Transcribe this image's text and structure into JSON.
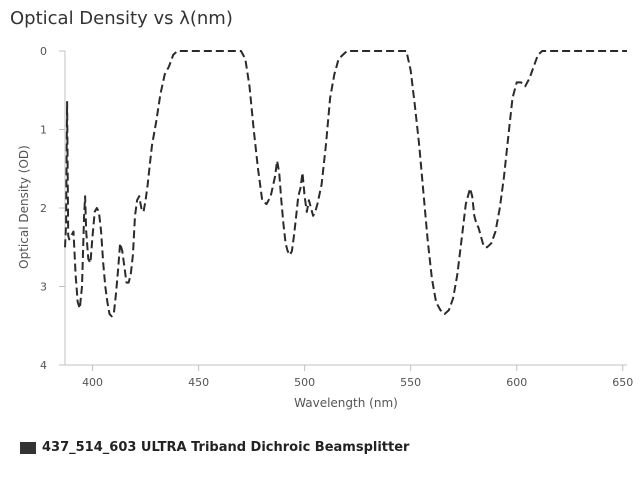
{
  "chart_data": {
    "type": "line",
    "title": "Optical Density vs λ(nm)",
    "xlabel": "Wavelength (nm)",
    "ylabel": "Optical Density (OD)",
    "xlim": [
      387,
      652
    ],
    "ylim": [
      0,
      4
    ],
    "y_inverted": true,
    "xticks": [
      400,
      450,
      500,
      550,
      600,
      650
    ],
    "yticks": [
      0,
      1,
      2,
      3,
      4
    ],
    "grid": false,
    "legend_position": "bottom-left",
    "series": [
      {
        "name": "437_514_603 ULTRA Triband Dichroic Beamsplitter",
        "color": "#2b2b2b",
        "line_style": "dashed",
        "x": [
          387,
          387.5,
          388,
          388.5,
          389,
          390,
          391,
          392,
          393,
          394,
          395,
          396,
          396.5,
          397,
          398,
          399,
          400,
          401,
          402,
          403,
          404,
          405,
          406,
          407,
          408,
          409,
          410,
          411,
          412,
          413,
          414,
          415,
          416,
          417,
          418,
          419,
          420,
          421,
          422,
          423,
          424,
          425,
          426,
          427,
          428,
          430,
          432,
          434,
          436,
          438,
          440,
          442,
          444,
          446,
          448,
          450,
          455,
          460,
          465,
          470,
          472,
          474,
          476,
          478,
          480,
          482,
          484,
          486,
          487,
          488,
          489,
          490,
          491,
          492,
          493,
          494,
          495,
          496,
          497,
          498,
          499,
          500,
          501,
          502,
          503,
          504,
          505,
          506,
          508,
          510,
          512,
          514,
          515,
          516,
          518,
          520,
          525,
          530,
          535,
          540,
          544,
          546,
          548,
          550,
          552,
          554,
          556,
          558,
          560,
          562,
          564,
          566,
          568,
          570,
          572,
          574,
          576,
          578,
          579,
          580,
          581,
          582,
          583,
          584,
          585,
          586,
          588,
          590,
          592,
          594,
          596,
          598,
          600,
          602,
          604,
          606,
          608,
          610,
          612,
          615,
          620,
          630,
          640,
          652
        ],
        "y": [
          2.5,
          2.2,
          0.65,
          2.35,
          2.4,
          2.35,
          2.3,
          2.85,
          3.2,
          3.28,
          3.0,
          2.1,
          1.85,
          2.3,
          2.65,
          2.7,
          2.35,
          2.05,
          2.0,
          2.05,
          2.3,
          2.7,
          3.0,
          3.2,
          3.35,
          3.38,
          3.35,
          3.1,
          2.8,
          2.45,
          2.55,
          2.75,
          2.95,
          2.95,
          2.85,
          2.6,
          2.1,
          1.9,
          1.85,
          2.0,
          2.05,
          1.9,
          1.7,
          1.45,
          1.2,
          0.9,
          0.55,
          0.3,
          0.2,
          0.05,
          0.0,
          0.0,
          0.0,
          0.0,
          0.0,
          0.0,
          0.0,
          0.0,
          0.0,
          0.0,
          0.1,
          0.45,
          1.0,
          1.5,
          1.9,
          1.95,
          1.85,
          1.6,
          1.4,
          1.55,
          1.9,
          2.2,
          2.45,
          2.55,
          2.6,
          2.55,
          2.35,
          2.1,
          1.85,
          1.75,
          1.55,
          1.85,
          2.05,
          1.9,
          2.0,
          2.1,
          2.05,
          1.95,
          1.7,
          1.2,
          0.6,
          0.3,
          0.2,
          0.1,
          0.05,
          0.0,
          0.0,
          0.0,
          0.0,
          0.0,
          0.0,
          0.0,
          0.0,
          0.25,
          0.7,
          1.2,
          1.8,
          2.4,
          2.9,
          3.2,
          3.3,
          3.35,
          3.3,
          3.15,
          2.85,
          2.4,
          1.95,
          1.75,
          1.85,
          2.1,
          2.2,
          2.25,
          2.35,
          2.45,
          2.5,
          2.5,
          2.45,
          2.3,
          2.0,
          1.6,
          1.1,
          0.6,
          0.4,
          0.4,
          0.45,
          0.35,
          0.2,
          0.05,
          0.0,
          0.0,
          0.0,
          0.0,
          0.0,
          0.0
        ]
      }
    ]
  }
}
